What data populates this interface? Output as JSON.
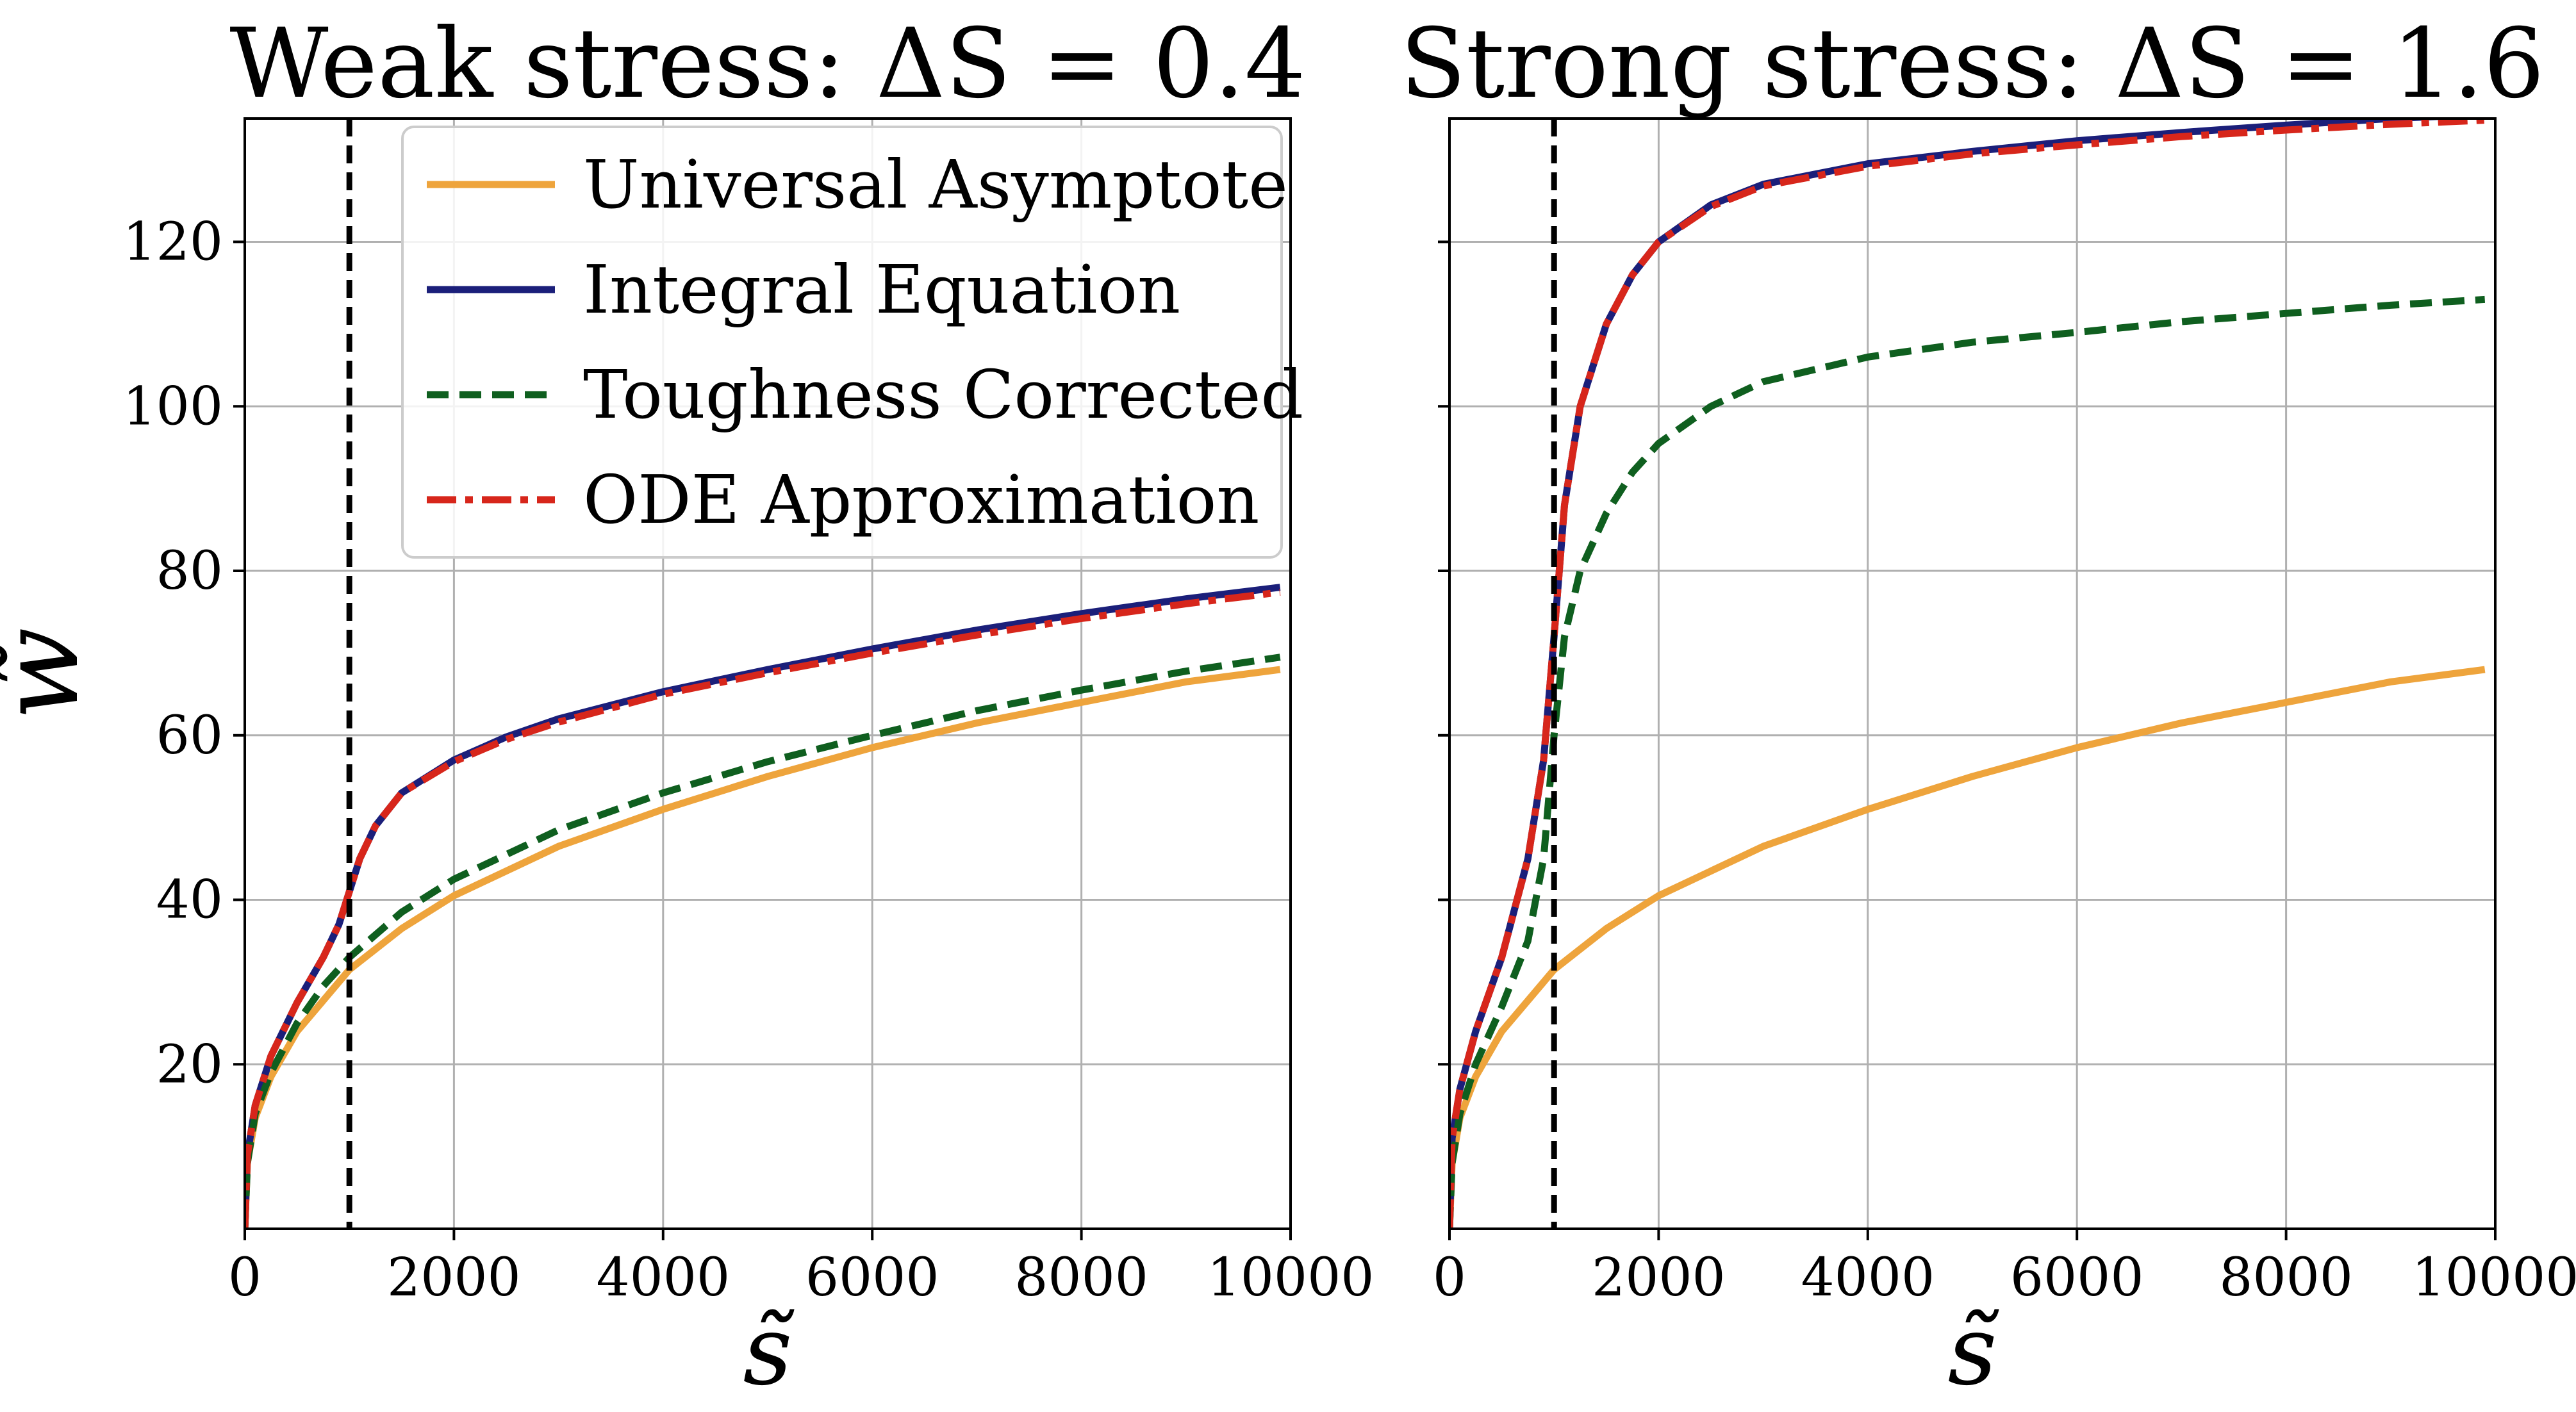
{
  "chart_data": [
    {
      "type": "line",
      "title": "Weak stress: ΔS = 0.4",
      "xlabel": "s̃",
      "ylabel": "w̃",
      "xlim": [
        0,
        10000
      ],
      "ylim": [
        0,
        135
      ],
      "xticks": [
        0,
        2000,
        4000,
        6000,
        8000,
        10000
      ],
      "yticks": [
        20,
        40,
        60,
        80,
        100,
        120
      ],
      "grid": true,
      "legend": "top-right",
      "vline": {
        "x": 1000,
        "style": "dashed",
        "color": "#000000"
      },
      "series": [
        {
          "name": "Universal Asymptote",
          "color": "#eea43c",
          "style": "solid",
          "x": [
            0,
            25,
            100,
            250,
            500,
            1000,
            1500,
            2000,
            3000,
            4000,
            5000,
            6000,
            7000,
            8000,
            9000,
            9900
          ],
          "y": [
            0,
            8,
            13.5,
            18.5,
            24,
            31.5,
            36.5,
            40.5,
            46.5,
            51,
            55,
            58.5,
            61.5,
            64,
            66.5,
            68
          ]
        },
        {
          "name": "Integral Equation",
          "color": "#1b1f7a",
          "style": "solid",
          "x": [
            0,
            25,
            100,
            250,
            500,
            750,
            900,
            1000,
            1100,
            1250,
            1500,
            2000,
            2500,
            3000,
            4000,
            5000,
            6000,
            7000,
            8000,
            9000,
            9900
          ],
          "y": [
            0,
            9,
            15,
            21,
            27.5,
            33,
            37,
            41,
            45,
            49,
            53,
            57,
            59.8,
            62,
            65.3,
            68,
            70.5,
            72.8,
            74.8,
            76.6,
            78
          ]
        },
        {
          "name": "Toughness Corrected",
          "color": "#0f5f1f",
          "style": "dashed",
          "x": [
            0,
            25,
            100,
            250,
            500,
            750,
            1000,
            1500,
            2000,
            3000,
            4000,
            5000,
            6000,
            7000,
            8000,
            9000,
            9900
          ],
          "y": [
            0,
            8,
            14,
            19,
            25,
            29.5,
            33,
            38.5,
            42.5,
            48.5,
            53,
            56.8,
            60,
            63,
            65.5,
            67.8,
            69.5
          ]
        },
        {
          "name": "ODE Approximation",
          "color": "#d7261b",
          "style": "dashdot",
          "x": [
            0,
            25,
            100,
            250,
            500,
            750,
            900,
            1000,
            1100,
            1250,
            1500,
            2000,
            2500,
            3000,
            4000,
            5000,
            6000,
            7000,
            8000,
            9000,
            9900
          ],
          "y": [
            0,
            9,
            15,
            21,
            27.5,
            33,
            37,
            41,
            45,
            49,
            53,
            56.8,
            59.5,
            61.6,
            65,
            67.6,
            70,
            72.2,
            74.2,
            76,
            77.4
          ]
        }
      ]
    },
    {
      "type": "line",
      "title": "Strong stress: ΔS = 1.6",
      "xlabel": "s̃",
      "ylabel": "",
      "xlim": [
        0,
        10000
      ],
      "ylim": [
        0,
        135
      ],
      "xticks": [
        0,
        2000,
        4000,
        6000,
        8000,
        10000
      ],
      "yticks": [
        20,
        40,
        60,
        80,
        100,
        120
      ],
      "grid": true,
      "legend": "",
      "vline": {
        "x": 1000,
        "style": "dashed",
        "color": "#000000"
      },
      "series": [
        {
          "name": "Universal Asymptote",
          "color": "#eea43c",
          "style": "solid",
          "x": [
            0,
            25,
            100,
            250,
            500,
            1000,
            1500,
            2000,
            3000,
            4000,
            5000,
            6000,
            7000,
            8000,
            9000,
            9900
          ],
          "y": [
            0,
            8,
            13.5,
            18.5,
            24,
            31.5,
            36.5,
            40.5,
            46.5,
            51,
            55,
            58.5,
            61.5,
            64,
            66.5,
            68
          ]
        },
        {
          "name": "Integral Equation",
          "color": "#1b1f7a",
          "style": "solid",
          "x": [
            0,
            25,
            100,
            250,
            500,
            750,
            900,
            1000,
            1100,
            1250,
            1500,
            1750,
            2000,
            2500,
            3000,
            4000,
            5000,
            6000,
            7000,
            8000,
            9000,
            9900
          ],
          "y": [
            0,
            11,
            17,
            24,
            33,
            45,
            57,
            72,
            88,
            100,
            110,
            116,
            120,
            124.5,
            127,
            129.5,
            131,
            132.3,
            133.3,
            134.2,
            135,
            135.5
          ]
        },
        {
          "name": "Toughness Corrected",
          "color": "#0f5f1f",
          "style": "dashed",
          "x": [
            0,
            25,
            100,
            250,
            500,
            750,
            900,
            1000,
            1100,
            1250,
            1500,
            1750,
            2000,
            2500,
            3000,
            4000,
            5000,
            6000,
            7000,
            8000,
            9000,
            9900
          ],
          "y": [
            0,
            8,
            14,
            20,
            27,
            35,
            45,
            60,
            72,
            80,
            87,
            92,
            95.5,
            100,
            103,
            106,
            107.8,
            109,
            110.3,
            111.3,
            112.3,
            113
          ]
        },
        {
          "name": "ODE Approximation",
          "color": "#d7261b",
          "style": "dashdot",
          "x": [
            0,
            25,
            100,
            250,
            500,
            750,
            900,
            1000,
            1100,
            1250,
            1500,
            1750,
            2000,
            2500,
            3000,
            4000,
            5000,
            6000,
            7000,
            8000,
            9000,
            9900
          ],
          "y": [
            0,
            11,
            17,
            24,
            33,
            45,
            57,
            72,
            88,
            100,
            110,
            116,
            120,
            124.3,
            126.8,
            129.2,
            130.7,
            131.8,
            132.8,
            133.6,
            134.3,
            134.8
          ]
        }
      ]
    }
  ]
}
